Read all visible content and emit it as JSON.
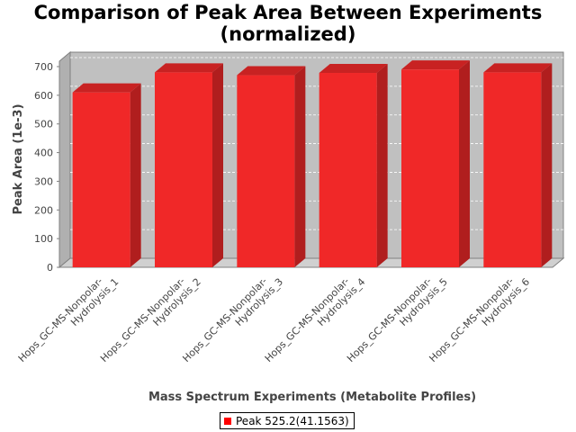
{
  "chart_data": {
    "type": "bar",
    "title": "Comparison of Peak Area Between Experiments",
    "subtitle": "(normalized)",
    "xlabel": "Mass Spectrum Experiments (Metabolite Profiles)",
    "ylabel": "Peak Area (1e-3)",
    "ylim": [
      0,
      700
    ],
    "yticks": [
      0,
      100,
      200,
      300,
      400,
      500,
      600,
      700
    ],
    "ytick_labels": [
      "0",
      "100",
      "200",
      "300",
      "400",
      "500",
      "600",
      "700"
    ],
    "grid": true,
    "legend_position": "bottom",
    "categories": [
      [
        "Hops_GC-MS-Nonpolar-",
        "Hydrolysis_1"
      ],
      [
        "Hops_GC-MS-Nonpolar-",
        "Hydrolysis_2"
      ],
      [
        "Hops_GC-MS-Nonpolar-",
        "Hydrolysis_3"
      ],
      [
        "Hops_GC-MS-Nonpolar-",
        "Hydrolysis_4"
      ],
      [
        "Hops_GC-MS-Nonpolar-",
        "Hydrolysis_5"
      ],
      [
        "Hops_GC-MS-Nonpolar-",
        "Hydrolysis_6"
      ]
    ],
    "series": [
      {
        "name": "Peak 525.2(41.1563)",
        "values": [
          610,
          680,
          670,
          678,
          690,
          680
        ]
      }
    ],
    "colors": {
      "bar_front": "#f02828",
      "bar_side": "#b01e1e",
      "bar_top": "#c82222",
      "plot_bg": "#c0c0c0",
      "floor": "#d0d0d0",
      "legend_swatch": "#ff0000"
    }
  }
}
